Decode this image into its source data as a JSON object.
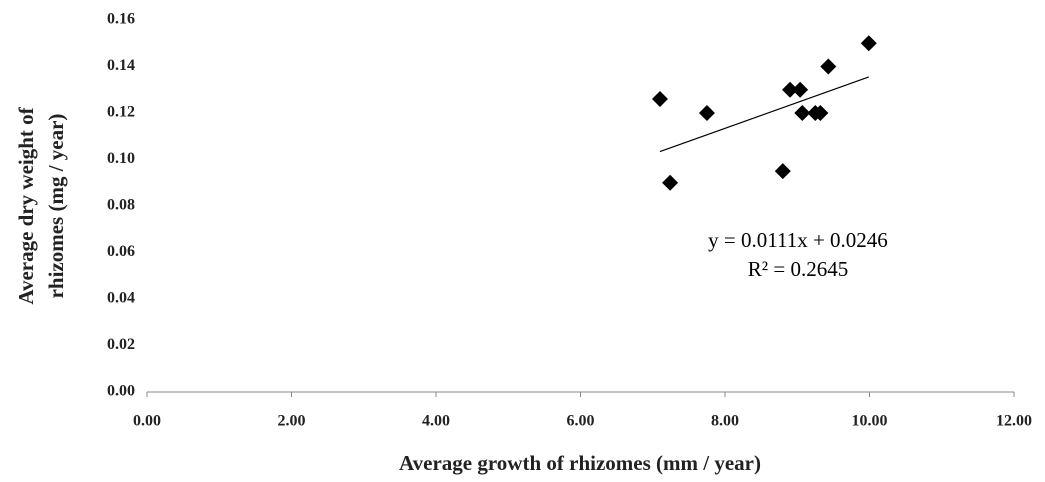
{
  "chart_data": {
    "type": "scatter",
    "x_label": "Average growth of rhizomes (mm / year)",
    "y_label": [
      "Average dry weight of",
      "rhizomes (mg / year)"
    ],
    "series": [
      {
        "color": "#000000",
        "x": [
          7.1,
          7.24,
          7.75,
          8.8,
          8.9,
          9.04,
          9.07,
          9.25,
          9.32,
          9.43,
          9.99
        ],
        "values": [
          0.126,
          0.09,
          0.12,
          0.095,
          0.13,
          0.13,
          0.12,
          0.12,
          0.12,
          0.14,
          0.15
        ]
      }
    ],
    "trendline": {
      "slope": 0.0111,
      "intercept": 0.0246,
      "equation": "y = 0.0111x + 0.0246",
      "r2": "R² = 0.2645"
    },
    "xlim": [
      0,
      12
    ],
    "xticks": [
      {
        "value": 0,
        "label": "0.00"
      },
      {
        "value": 2,
        "label": "2.00"
      },
      {
        "value": 4,
        "label": "4.00"
      },
      {
        "value": 6,
        "label": "6.00"
      },
      {
        "value": 8,
        "label": "8.00"
      },
      {
        "value": 10,
        "label": "10.00"
      },
      {
        "value": 12,
        "label": "12.00"
      }
    ],
    "ylim": [
      0,
      0.16
    ],
    "yticks": [
      {
        "value": 0,
        "label": "0.00"
      },
      {
        "value": 0.02,
        "label": "0.02"
      },
      {
        "value": 0.04,
        "label": "0.04"
      },
      {
        "value": 0.06,
        "label": "0.06"
      },
      {
        "value": 0.08,
        "label": "0.08"
      },
      {
        "value": 0.1,
        "label": "0.10"
      },
      {
        "value": 0.12,
        "label": "0.12"
      },
      {
        "value": 0.14,
        "label": "0.14"
      },
      {
        "value": 0.16,
        "label": "0.16"
      }
    ],
    "grid": false
  }
}
